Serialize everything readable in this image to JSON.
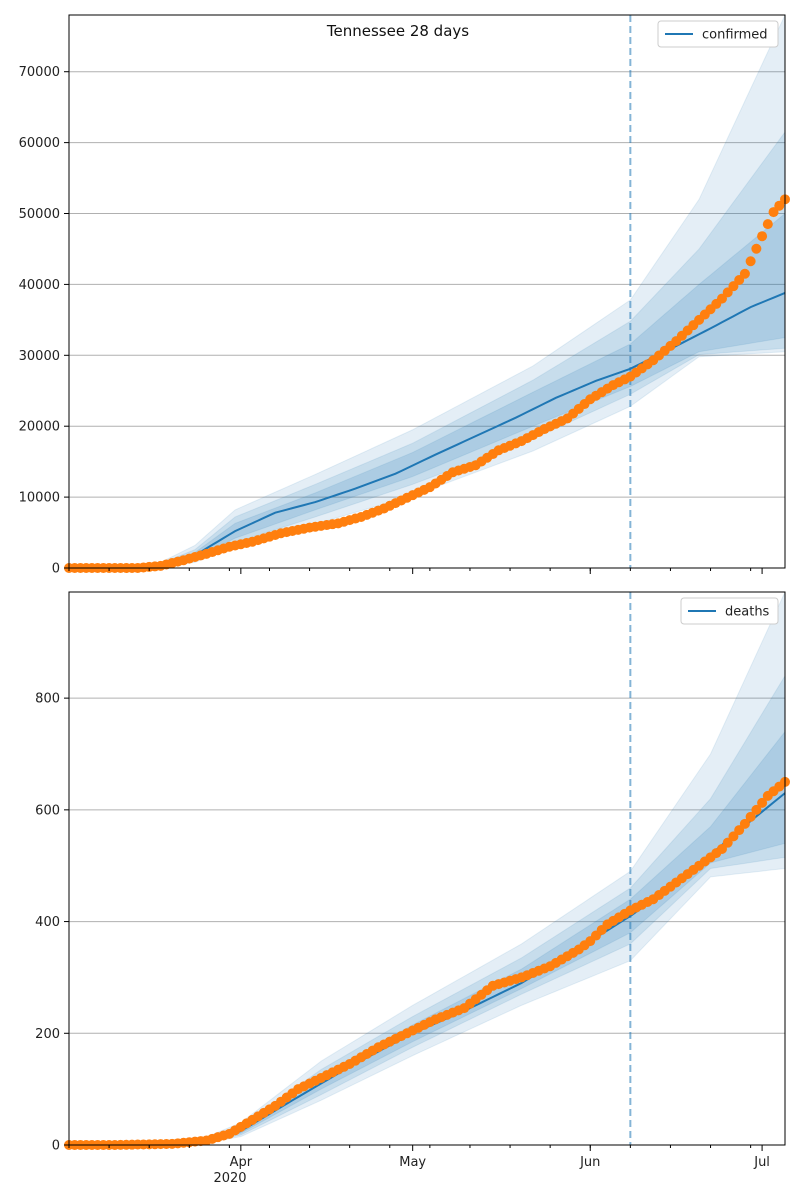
{
  "chart_data": [
    {
      "type": "line",
      "title": "Tennessee 28 days",
      "xlabel": "",
      "ylabel": "",
      "xlim": [
        "2020-03-02",
        "2020-07-05"
      ],
      "ylim": [
        0,
        78000
      ],
      "yticks": [
        0,
        10000,
        20000,
        30000,
        40000,
        50000,
        60000,
        70000
      ],
      "grid": "y",
      "legend": {
        "placement": "top-right",
        "entries": [
          "confirmed"
        ]
      },
      "vline_date": "2020-06-08",
      "series": [
        {
          "name": "confirmed",
          "kind": "line",
          "color": "#1f77b4",
          "x": [
            "2020-03-02",
            "2020-03-10",
            "2020-03-17",
            "2020-03-24",
            "2020-03-31",
            "2020-04-07",
            "2020-04-14",
            "2020-04-21",
            "2020-04-28",
            "2020-05-05",
            "2020-05-12",
            "2020-05-19",
            "2020-05-26",
            "2020-06-02",
            "2020-06-08",
            "2020-06-15",
            "2020-06-22",
            "2020-06-29",
            "2020-07-05"
          ],
          "y": [
            0,
            0,
            200,
            1800,
            5200,
            7800,
            9300,
            11200,
            13300,
            16000,
            18600,
            21200,
            24000,
            26400,
            28100,
            30900,
            33800,
            36800,
            38800
          ]
        },
        {
          "kind": "points",
          "color": "#ff7f0e",
          "x": [
            "2020-03-02",
            "2020-03-08",
            "2020-03-14",
            "2020-03-18",
            "2020-03-22",
            "2020-03-26",
            "2020-03-30",
            "2020-04-03",
            "2020-04-08",
            "2020-04-13",
            "2020-04-18",
            "2020-04-22",
            "2020-04-26",
            "2020-04-30",
            "2020-05-04",
            "2020-05-08",
            "2020-05-12",
            "2020-05-16",
            "2020-05-20",
            "2020-05-24",
            "2020-05-28",
            "2020-06-01",
            "2020-06-05",
            "2020-06-08",
            "2020-06-12",
            "2020-06-16",
            "2020-06-20",
            "2020-06-24",
            "2020-06-28",
            "2020-07-01",
            "2020-07-03",
            "2020-07-05"
          ],
          "y": [
            0,
            0,
            0,
            300,
            1100,
            2000,
            3000,
            3700,
            4900,
            5700,
            6300,
            7200,
            8400,
            9900,
            11400,
            13500,
            14500,
            16600,
            17900,
            19600,
            21100,
            23800,
            25800,
            27000,
            29300,
            32000,
            35000,
            38000,
            41500,
            46800,
            50200,
            52000
          ]
        }
      ],
      "bands": [
        {
          "x": [
            "2020-03-02",
            "2020-03-17",
            "2020-03-24",
            "2020-03-31",
            "2020-04-14",
            "2020-05-01",
            "2020-05-22",
            "2020-06-08",
            "2020-06-20",
            "2020-07-05"
          ],
          "low": [
            0,
            100,
            800,
            3000,
            6200,
            10200,
            16500,
            22800,
            29800,
            30500
          ],
          "high": [
            0,
            400,
            3200,
            8200,
            13200,
            19500,
            28500,
            37800,
            52000,
            78000
          ],
          "opacity": 0.12
        },
        {
          "x": [
            "2020-03-02",
            "2020-03-17",
            "2020-03-24",
            "2020-03-31",
            "2020-04-14",
            "2020-05-01",
            "2020-05-22",
            "2020-06-08",
            "2020-06-20",
            "2020-07-05"
          ],
          "low": [
            0,
            150,
            1100,
            3600,
            7200,
            11800,
            18200,
            24500,
            30100,
            31000
          ],
          "high": [
            0,
            300,
            2600,
            7200,
            11800,
            17600,
            26500,
            34800,
            45000,
            61500
          ],
          "opacity": 0.14
        },
        {
          "x": [
            "2020-03-02",
            "2020-03-17",
            "2020-03-24",
            "2020-03-31",
            "2020-04-14",
            "2020-05-01",
            "2020-05-22",
            "2020-06-08",
            "2020-06-20",
            "2020-07-05"
          ],
          "low": [
            0,
            170,
            1400,
            4200,
            8200,
            12900,
            20000,
            25600,
            30500,
            32500
          ],
          "high": [
            0,
            260,
            2200,
            6300,
            10600,
            16300,
            24800,
            31600,
            40000,
            50000
          ],
          "opacity": 0.16
        }
      ]
    },
    {
      "type": "line",
      "title": "",
      "xlabel": "",
      "ylabel": "",
      "xlim": [
        "2020-03-02",
        "2020-07-05"
      ],
      "ylim": [
        0,
        990
      ],
      "yticks": [
        0,
        200,
        400,
        600,
        800
      ],
      "xticks": [
        "2020-04-01",
        "2020-05-01",
        "2020-06-01",
        "2020-07-01"
      ],
      "xtick_labels": [
        "Apr",
        "May",
        "Jun",
        "Jul"
      ],
      "year_label": "2020",
      "grid": "y",
      "legend": {
        "placement": "top-right",
        "entries": [
          "deaths"
        ]
      },
      "vline_date": "2020-06-08",
      "series": [
        {
          "name": "deaths",
          "kind": "line",
          "color": "#1f77b4",
          "x": [
            "2020-03-02",
            "2020-03-20",
            "2020-03-27",
            "2020-04-01",
            "2020-04-10",
            "2020-04-20",
            "2020-05-01",
            "2020-05-10",
            "2020-05-20",
            "2020-06-01",
            "2020-06-08",
            "2020-06-15",
            "2020-06-22",
            "2020-06-29",
            "2020-07-05"
          ],
          "y": [
            0,
            0,
            5,
            25,
            80,
            140,
            200,
            240,
            290,
            365,
            410,
            460,
            520,
            580,
            630
          ]
        },
        {
          "kind": "points",
          "color": "#ff7f0e",
          "x": [
            "2020-03-02",
            "2020-03-10",
            "2020-03-20",
            "2020-03-26",
            "2020-03-30",
            "2020-04-03",
            "2020-04-07",
            "2020-04-11",
            "2020-04-15",
            "2020-04-20",
            "2020-04-25",
            "2020-05-01",
            "2020-05-05",
            "2020-05-10",
            "2020-05-15",
            "2020-05-20",
            "2020-05-25",
            "2020-05-30",
            "2020-06-01",
            "2020-06-04",
            "2020-06-08",
            "2020-06-12",
            "2020-06-16",
            "2020-06-20",
            "2020-06-24",
            "2020-06-28",
            "2020-07-02",
            "2020-07-05"
          ],
          "y": [
            0,
            0,
            2,
            8,
            20,
            45,
            70,
            100,
            120,
            145,
            175,
            205,
            225,
            245,
            285,
            300,
            320,
            350,
            365,
            395,
            420,
            440,
            470,
            500,
            530,
            575,
            625,
            650
          ]
        }
      ],
      "bands": [
        {
          "x": [
            "2020-03-02",
            "2020-03-24",
            "2020-04-01",
            "2020-04-15",
            "2020-05-01",
            "2020-05-20",
            "2020-06-08",
            "2020-06-22",
            "2020-07-05"
          ],
          "low": [
            0,
            0,
            15,
            80,
            160,
            250,
            330,
            480,
            495
          ],
          "high": [
            0,
            6,
            40,
            150,
            250,
            360,
            490,
            700,
            990
          ],
          "opacity": 0.12
        },
        {
          "x": [
            "2020-03-02",
            "2020-03-24",
            "2020-04-01",
            "2020-04-15",
            "2020-05-01",
            "2020-05-20",
            "2020-06-08",
            "2020-06-22",
            "2020-07-05"
          ],
          "low": [
            0,
            1,
            18,
            90,
            175,
            270,
            360,
            495,
            515
          ],
          "high": [
            0,
            5,
            33,
            135,
            230,
            335,
            460,
            620,
            840
          ],
          "opacity": 0.14
        },
        {
          "x": [
            "2020-03-02",
            "2020-03-24",
            "2020-04-01",
            "2020-04-15",
            "2020-05-01",
            "2020-05-20",
            "2020-06-08",
            "2020-06-22",
            "2020-07-05"
          ],
          "low": [
            0,
            2,
            21,
            100,
            185,
            280,
            380,
            505,
            540
          ],
          "high": [
            0,
            4,
            29,
            125,
            215,
            315,
            440,
            570,
            740
          ],
          "opacity": 0.16
        }
      ]
    }
  ]
}
